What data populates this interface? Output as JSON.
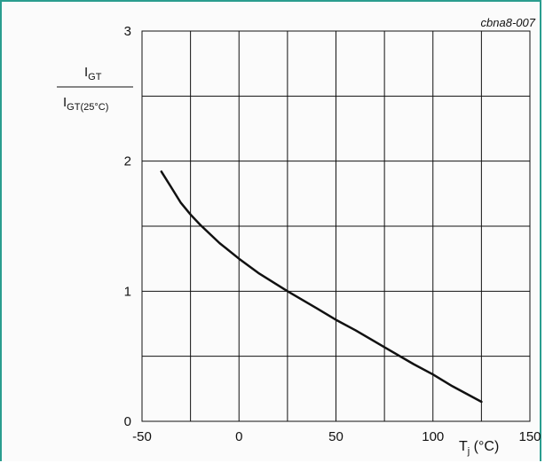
{
  "chart_id": "cbna8-007",
  "chart_data": {
    "type": "line",
    "ylabel": {
      "num": "I",
      "num_sub": "GT",
      "den": "I",
      "den_sub": "GT(25°C)"
    },
    "xlabel": {
      "main": "T",
      "sub": "j",
      "unit": " (°C)"
    },
    "xlim": [
      -50,
      150
    ],
    "ylim": [
      0,
      3
    ],
    "x_ticks": [
      -50,
      0,
      50,
      100,
      150
    ],
    "x_tick_labels": [
      "-50",
      "0",
      "50",
      "100",
      "150"
    ],
    "y_ticks": [
      0,
      1,
      2,
      3
    ],
    "y_tick_labels": [
      "0",
      "1",
      "2",
      "3"
    ],
    "grid": true,
    "x_grid_step": 25,
    "y_grid_step": 0.5,
    "series": [
      {
        "color": "#111111",
        "x": [
          -40,
          -35,
          -30,
          -25,
          -20,
          -10,
          0,
          10,
          25,
          40,
          50,
          60,
          75,
          90,
          100,
          110,
          125
        ],
        "y": [
          1.92,
          1.8,
          1.68,
          1.59,
          1.51,
          1.37,
          1.25,
          1.14,
          1.0,
          0.87,
          0.78,
          0.7,
          0.57,
          0.44,
          0.36,
          0.27,
          0.15
        ]
      }
    ]
  }
}
